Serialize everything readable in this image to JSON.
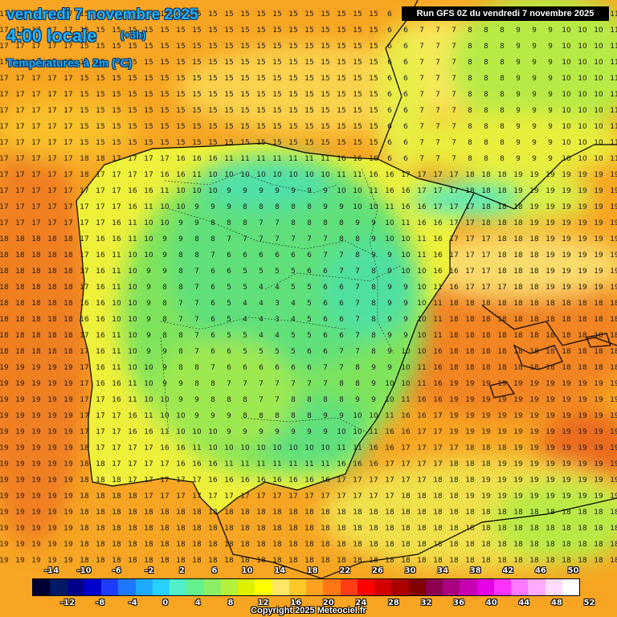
{
  "header": {
    "date": "vendredi 7 novembre 2025",
    "time": "4:00 locale",
    "offset": "(+3h)",
    "variable": "Températures à 2m (°C)",
    "run": "Run GFS 0Z du vendredi 7 novembre 2025"
  },
  "colorbar": {
    "upper_labels": [
      "-14",
      "-10",
      "-6",
      "-2",
      "2",
      "6",
      "10",
      "14",
      "18",
      "22",
      "26",
      "30",
      "34",
      "38",
      "42",
      "46",
      "50"
    ],
    "lower_labels": [
      "-12",
      "-8",
      "-4",
      "0",
      "4",
      "8",
      "12",
      "16",
      "20",
      "24",
      "28",
      "32",
      "36",
      "40",
      "44",
      "48",
      "52"
    ],
    "colors": [
      "#000033",
      "#001a66",
      "#00008b",
      "#0000cd",
      "#1e3cff",
      "#1e78ff",
      "#1eaaff",
      "#28d2ff",
      "#50f0c8",
      "#64f08c",
      "#8cf064",
      "#b4f03c",
      "#dcf000",
      "#ffff00",
      "#ffe664",
      "#ffc828",
      "#ffa01e",
      "#ff7814",
      "#ff3c14",
      "#ff0000",
      "#d20000",
      "#aa0000",
      "#820000",
      "#8c0050",
      "#aa0082",
      "#c800b4",
      "#e600e6",
      "#ff32ff",
      "#ff78ff",
      "#ffaaff",
      "#ffdcff",
      "#ffffff"
    ]
  },
  "map": {
    "description": "Iberian peninsula temperature forecast grid",
    "land_color": "#78e664",
    "sea_color": "#ffa01e",
    "coast_color": "#000000"
  },
  "copyright": "Copyright 2025 Meteociel.fr"
}
